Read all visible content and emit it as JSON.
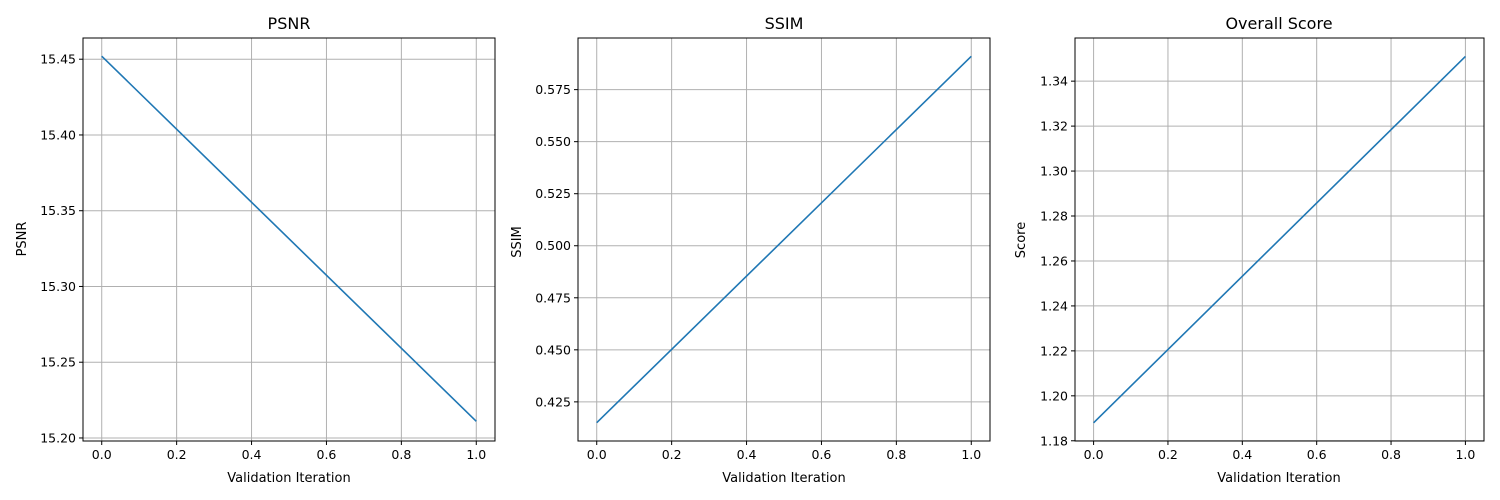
{
  "chart_data": [
    {
      "type": "line",
      "title": "PSNR",
      "xlabel": "Validation Iteration",
      "ylabel": "PSNR",
      "x": [
        0,
        1
      ],
      "y": [
        15.452,
        15.211
      ],
      "xlim": [
        -0.05,
        1.05
      ],
      "ylim": [
        15.198,
        15.464
      ],
      "xticks": [
        0.0,
        0.2,
        0.4,
        0.6,
        0.8,
        1.0
      ],
      "xtick_labels": [
        "0.0",
        "0.2",
        "0.4",
        "0.6",
        "0.8",
        "1.0"
      ],
      "yticks": [
        15.2,
        15.25,
        15.3,
        15.35,
        15.4,
        15.45
      ],
      "ytick_labels": [
        "15.20",
        "15.25",
        "15.30",
        "15.35",
        "15.40",
        "15.45"
      ],
      "grid": true,
      "color": "#1f77b4"
    },
    {
      "type": "line",
      "title": "SSIM",
      "xlabel": "Validation Iteration",
      "ylabel": "SSIM",
      "x": [
        0,
        1
      ],
      "y": [
        0.415,
        0.591
      ],
      "xlim": [
        -0.05,
        1.05
      ],
      "ylim": [
        0.4062,
        0.5998
      ],
      "xticks": [
        0.0,
        0.2,
        0.4,
        0.6,
        0.8,
        1.0
      ],
      "xtick_labels": [
        "0.0",
        "0.2",
        "0.4",
        "0.6",
        "0.8",
        "1.0"
      ],
      "yticks": [
        0.425,
        0.45,
        0.475,
        0.5,
        0.525,
        0.55,
        0.575
      ],
      "ytick_labels": [
        "0.425",
        "0.450",
        "0.475",
        "0.500",
        "0.525",
        "0.550",
        "0.575"
      ],
      "grid": true,
      "color": "#1f77b4"
    },
    {
      "type": "line",
      "title": "Overall Score",
      "xlabel": "Validation Iteration",
      "ylabel": "Score",
      "x": [
        0,
        1
      ],
      "y": [
        1.188,
        1.351
      ],
      "xlim": [
        -0.05,
        1.05
      ],
      "ylim": [
        1.1799,
        1.3592
      ],
      "xticks": [
        0.0,
        0.2,
        0.4,
        0.6,
        0.8,
        1.0
      ],
      "xtick_labels": [
        "0.0",
        "0.2",
        "0.4",
        "0.6",
        "0.8",
        "1.0"
      ],
      "yticks": [
        1.18,
        1.2,
        1.22,
        1.24,
        1.26,
        1.28,
        1.3,
        1.32,
        1.34
      ],
      "ytick_labels": [
        "1.18",
        "1.20",
        "1.22",
        "1.24",
        "1.26",
        "1.28",
        "1.30",
        "1.32",
        "1.34"
      ],
      "grid": true,
      "color": "#1f77b4"
    }
  ]
}
